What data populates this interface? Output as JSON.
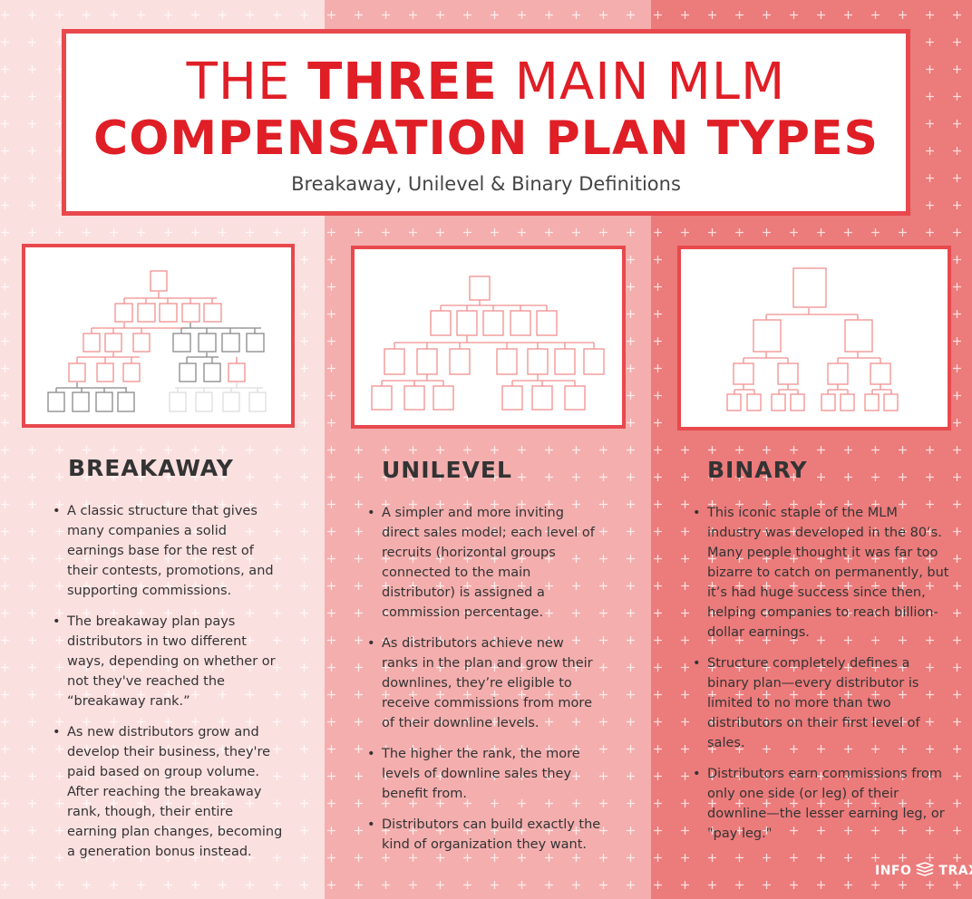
{
  "header": {
    "title_pre": "THE ",
    "title_bold": "THREE",
    "title_post": " MAIN MLM",
    "title_line2": "COMPENSATION PLAN TYPES",
    "subtitle": "Breakaway, Unilevel & Binary Definitions"
  },
  "colors": {
    "accent": "#e01e26",
    "border": "#e8494d",
    "col1_bg": "#fbe0e0",
    "col2_bg": "#f4aeae",
    "col3_bg": "#ec7b7b",
    "node_red": "#f08f8f",
    "node_gray": "#888888",
    "node_light": "#dddddd"
  },
  "sections": [
    {
      "title": "BREAKAWAY",
      "bullets": [
        "A classic structure that gives many companies a solid earnings base for the rest of their contests, promotions, and supporting commissions.",
        "The breakaway plan pays distributors in two different ways, depending on whether or not they've reached the “breakaway rank.”",
        "As new distributors grow and develop their business, they're paid based on group volume. After reaching the breakaway rank, though, their entire earning plan changes, becoming a generation bonus instead."
      ]
    },
    {
      "title": "UNILEVEL",
      "bullets": [
        "A simpler and more inviting direct sales model; each level of recruits (horizontal groups connected to the main distributor) is assigned a commission percentage.",
        "As distributors achieve new ranks in the plan and grow their downlines, they’re eligible to receive commissions from more of their downline levels.",
        "The higher the rank, the more levels of downline sales they benefit from.",
        "Distributors can build exactly the kind of organization they want."
      ]
    },
    {
      "title": "BINARY",
      "bullets": [
        "This iconic staple of the MLM industry was developed in the 80’s. Many people thought it was far too bizarre to catch on permanently, but it’s had huge success since then, helping companies to reach billion-dollar earnings.",
        "Structure completely defines a binary plan—every distributor is limited to no more than two distributors on their first level of sales.",
        "Distributors earn commissions from only one side (or leg) of their downline—the lesser earning leg, or \"pay leg.\""
      ]
    }
  ],
  "brand": {
    "left": "INFO",
    "right": "TRAX",
    "icon": "stacked-layers-icon"
  }
}
